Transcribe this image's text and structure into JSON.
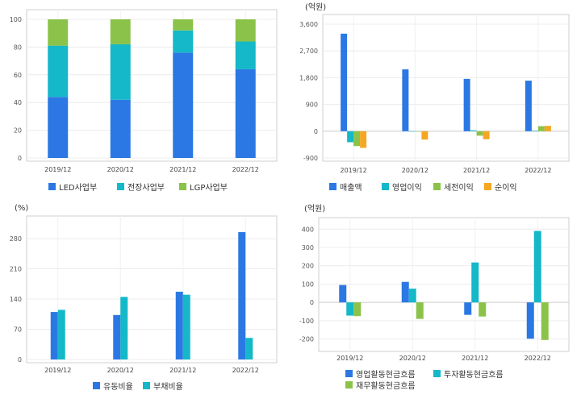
{
  "chart_data": [
    {
      "type": "bar",
      "stacked": true,
      "categories": [
        "2019/12",
        "2020/12",
        "2021/12",
        "2022/12"
      ],
      "series": [
        {
          "name": "LED사업부",
          "color": "#2b78e4",
          "values": [
            44,
            42,
            76,
            64
          ]
        },
        {
          "name": "전장사업부",
          "color": "#14b8c8",
          "values": [
            37,
            40,
            16,
            20
          ]
        },
        {
          "name": "LGP사업부",
          "color": "#8bc34a",
          "values": [
            19,
            18,
            8,
            16
          ]
        }
      ],
      "unit_label": "",
      "yticks": [
        0,
        20,
        40,
        60,
        80,
        100
      ],
      "ylim": [
        0,
        100
      ]
    },
    {
      "type": "bar",
      "categories": [
        "2019/12",
        "2020/12",
        "2021/12",
        "2022/12"
      ],
      "series": [
        {
          "name": "매출액",
          "color": "#2b78e4",
          "values": [
            3280,
            2080,
            1760,
            1700
          ]
        },
        {
          "name": "영업이익",
          "color": "#14b8c8",
          "values": [
            -370,
            0,
            30,
            20
          ]
        },
        {
          "name": "세전이익",
          "color": "#8bc34a",
          "values": [
            -500,
            0,
            -150,
            170
          ]
        },
        {
          "name": "순이익",
          "color": "#f5a623",
          "values": [
            -560,
            -280,
            -270,
            180
          ]
        }
      ],
      "unit_label": "(억원)",
      "yticks": [
        -900,
        0,
        900,
        1800,
        2700,
        3600
      ],
      "ytick_labels": [
        "-900",
        "0",
        "900",
        "1,800",
        "2,700",
        "3,600"
      ],
      "ylim": [
        -900,
        3600
      ]
    },
    {
      "type": "bar",
      "categories": [
        "2019/12",
        "2020/12",
        "2021/12",
        "2022/12"
      ],
      "series": [
        {
          "name": "유동비율",
          "color": "#2b78e4",
          "values": [
            110,
            103,
            157,
            295
          ]
        },
        {
          "name": "부채비율",
          "color": "#14b8c8",
          "values": [
            115,
            145,
            150,
            50
          ]
        }
      ],
      "unit_label": "(%)",
      "yticks": [
        0,
        70,
        140,
        210,
        280
      ],
      "ylim": [
        0,
        310
      ]
    },
    {
      "type": "bar",
      "categories": [
        "2019/12",
        "2020/12",
        "2021/12",
        "2022/12"
      ],
      "series": [
        {
          "name": "영업활동현금흐름",
          "color": "#2b78e4",
          "values": [
            95,
            112,
            -68,
            -198
          ]
        },
        {
          "name": "투자활동현금흐름",
          "color": "#14b8c8",
          "values": [
            -72,
            75,
            218,
            390
          ]
        },
        {
          "name": "재무활동현금흐름",
          "color": "#8bc34a",
          "values": [
            -75,
            -90,
            -77,
            -205
          ]
        }
      ],
      "unit_label": "(억원)",
      "yticks": [
        -200,
        -100,
        0,
        100,
        200,
        300,
        400
      ],
      "ylim": [
        -250,
        410
      ]
    }
  ]
}
